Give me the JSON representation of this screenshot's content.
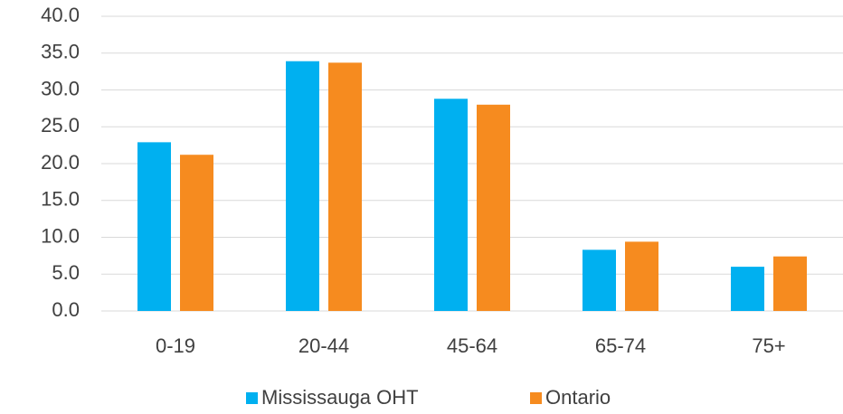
{
  "chart_data": {
    "type": "bar",
    "categories": [
      "0-19",
      "20-44",
      "45-64",
      "65-74",
      "75+"
    ],
    "series": [
      {
        "name": "Mississauga OHT",
        "color": "#00b0f0",
        "values": [
          22.9,
          33.9,
          28.8,
          8.3,
          6.0
        ]
      },
      {
        "name": "Ontario",
        "color": "#f68b1f",
        "values": [
          21.2,
          33.7,
          28.0,
          9.4,
          7.4
        ]
      }
    ],
    "ylim": [
      0,
      40
    ],
    "yticks": [
      {
        "value": 0,
        "label": "0.0"
      },
      {
        "value": 5,
        "label": "5.0"
      },
      {
        "value": 10,
        "label": "10.0"
      },
      {
        "value": 15,
        "label": "15.0"
      },
      {
        "value": 20,
        "label": "20.0"
      },
      {
        "value": 25,
        "label": "25.0"
      },
      {
        "value": 30,
        "label": "30.0"
      },
      {
        "value": 35,
        "label": "35.0"
      },
      {
        "value": 40,
        "label": "40.0"
      }
    ],
    "grid": true,
    "legend": "bottom"
  }
}
